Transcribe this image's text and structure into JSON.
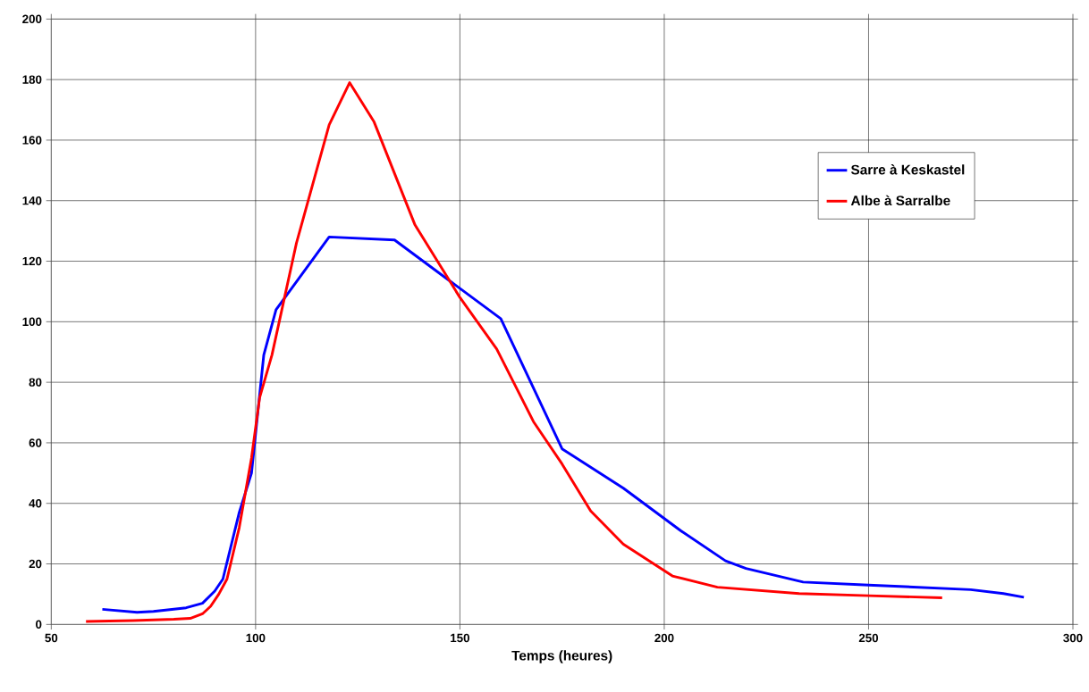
{
  "chart_data": {
    "type": "line",
    "xlabel": "Temps (heures)",
    "xlim": [
      50,
      300
    ],
    "xticks": [
      50,
      100,
      150,
      200,
      250,
      300
    ],
    "ylim": [
      0,
      200
    ],
    "yticks": [
      0,
      20,
      40,
      60,
      80,
      100,
      120,
      140,
      160,
      180,
      200
    ],
    "grid": true,
    "legend": "top right",
    "marker": "none",
    "line_style": "solid",
    "series": [
      {
        "name": "Sarre à Keskastel",
        "color": "#0000ff",
        "x": [
          62.5,
          71,
          75,
          83,
          87,
          90,
          92,
          96,
          99,
          102,
          105,
          118,
          134,
          148,
          160,
          175,
          190,
          204,
          215,
          220,
          234,
          250,
          275,
          283,
          288
        ],
        "values": [
          5,
          4,
          4.3,
          5.5,
          7,
          11,
          15,
          37,
          50,
          89,
          104,
          128,
          127,
          113,
          101,
          58,
          45,
          31,
          21,
          18.5,
          14,
          13,
          11.5,
          10.2,
          9
        ]
      },
      {
        "name": "Albe à Sarralbe",
        "color": "#ff0000",
        "x": [
          58.5,
          70,
          80,
          84,
          87,
          89,
          91,
          93,
          96,
          99,
          101,
          104,
          110,
          118,
          123,
          129,
          139,
          150,
          159,
          168,
          175,
          182,
          190,
          202,
          213,
          233,
          250,
          268
        ],
        "values": [
          1,
          1.3,
          1.7,
          2,
          3.5,
          6,
          10,
          15,
          32,
          55,
          75,
          89,
          126,
          165,
          179,
          166,
          132,
          108,
          91,
          67,
          53,
          37.5,
          26.5,
          16,
          12.3,
          10.2,
          9.5,
          8.8
        ]
      }
    ]
  }
}
